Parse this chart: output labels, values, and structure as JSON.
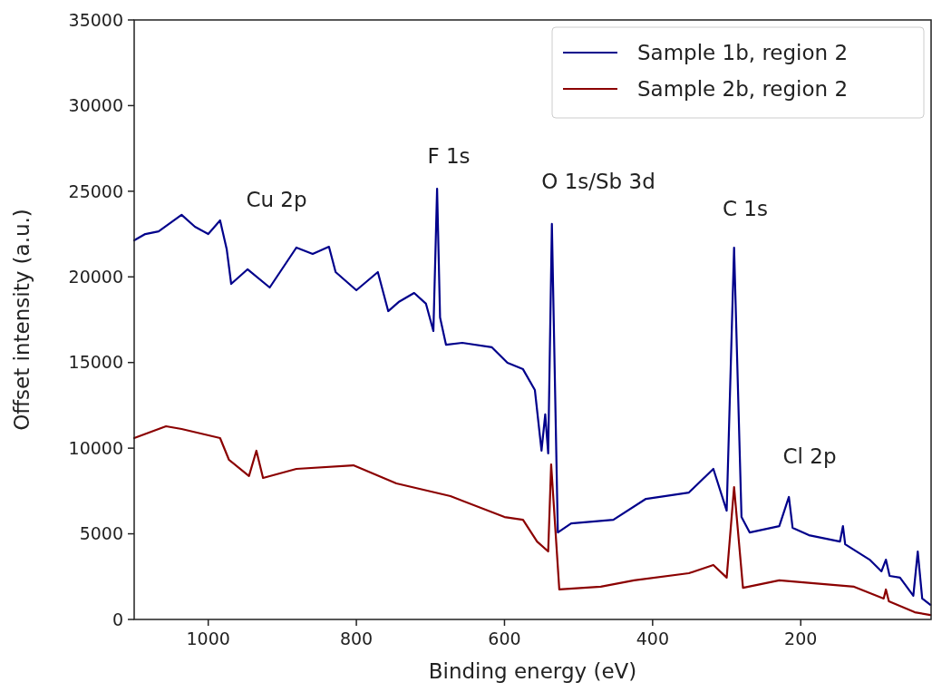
{
  "chart_data": {
    "type": "line",
    "xlabel": "Binding energy (eV)",
    "ylabel": "Offset intensity (a.u.)",
    "xlim": [
      1100,
      24
    ],
    "xticks": [
      1000,
      800,
      600,
      400,
      200
    ],
    "ylim": [
      0,
      35000
    ],
    "yticks": [
      0,
      5000,
      10000,
      15000,
      20000,
      25000,
      30000,
      35000
    ],
    "legend": "top right",
    "grid": false,
    "annotations": [
      "Cu 2p",
      "F 1s",
      "O 1s/Sb 3d",
      "C 1s",
      "Cl 2p"
    ],
    "series": [
      {
        "name": "Sample 1b, region 2",
        "color": "#00008b",
        "x": [
          1100,
          1085,
          1067,
          1036,
          1018,
          1000,
          984,
          975,
          969,
          947,
          917,
          881,
          859,
          837,
          828,
          800,
          771,
          757,
          743,
          722,
          706,
          696,
          691,
          687,
          679,
          657,
          617,
          596,
          575,
          559,
          550,
          545,
          541,
          536,
          528,
          510,
          453,
          409,
          351,
          318,
          300,
          290,
          280,
          269,
          229,
          216,
          211,
          189,
          147,
          143,
          140,
          107,
          91,
          85,
          80,
          66,
          48,
          42,
          36,
          25
        ],
        "values": [
          22130,
          22500,
          22660,
          23620,
          22930,
          22500,
          23300,
          21600,
          19590,
          20440,
          19380,
          21710,
          21340,
          21760,
          20280,
          19220,
          20280,
          18000,
          18530,
          19060,
          18430,
          16840,
          25150,
          17630,
          16040,
          16150,
          15890,
          14980,
          14610,
          13400,
          9850,
          11970,
          9690,
          23090,
          5080,
          5610,
          5820,
          7040,
          7410,
          8790,
          6350,
          21710,
          5980,
          5080,
          5450,
          7150,
          5350,
          4920,
          4550,
          5450,
          4390,
          3490,
          2810,
          3490,
          2540,
          2440,
          1380,
          3970,
          1220,
          850
        ]
      },
      {
        "name": "Sample 2b, region 2",
        "color": "#8b0000",
        "x": [
          1100,
          1057,
          1036,
          984,
          972,
          945,
          935,
          926,
          881,
          804,
          746,
          673,
          600,
          575,
          556,
          541,
          537,
          526,
          470,
          425,
          351,
          318,
          300,
          290,
          278,
          229,
          128,
          88,
          85,
          81,
          46,
          25
        ],
        "values": [
          10590,
          11280,
          11120,
          10590,
          9320,
          8370,
          9850,
          8260,
          8790,
          9000,
          7940,
          7200,
          5980,
          5820,
          4550,
          3970,
          9050,
          1750,
          1910,
          2280,
          2700,
          3180,
          2440,
          7730,
          1850,
          2280,
          1910,
          1220,
          1750,
          1060,
          420,
          260
        ]
      }
    ]
  }
}
